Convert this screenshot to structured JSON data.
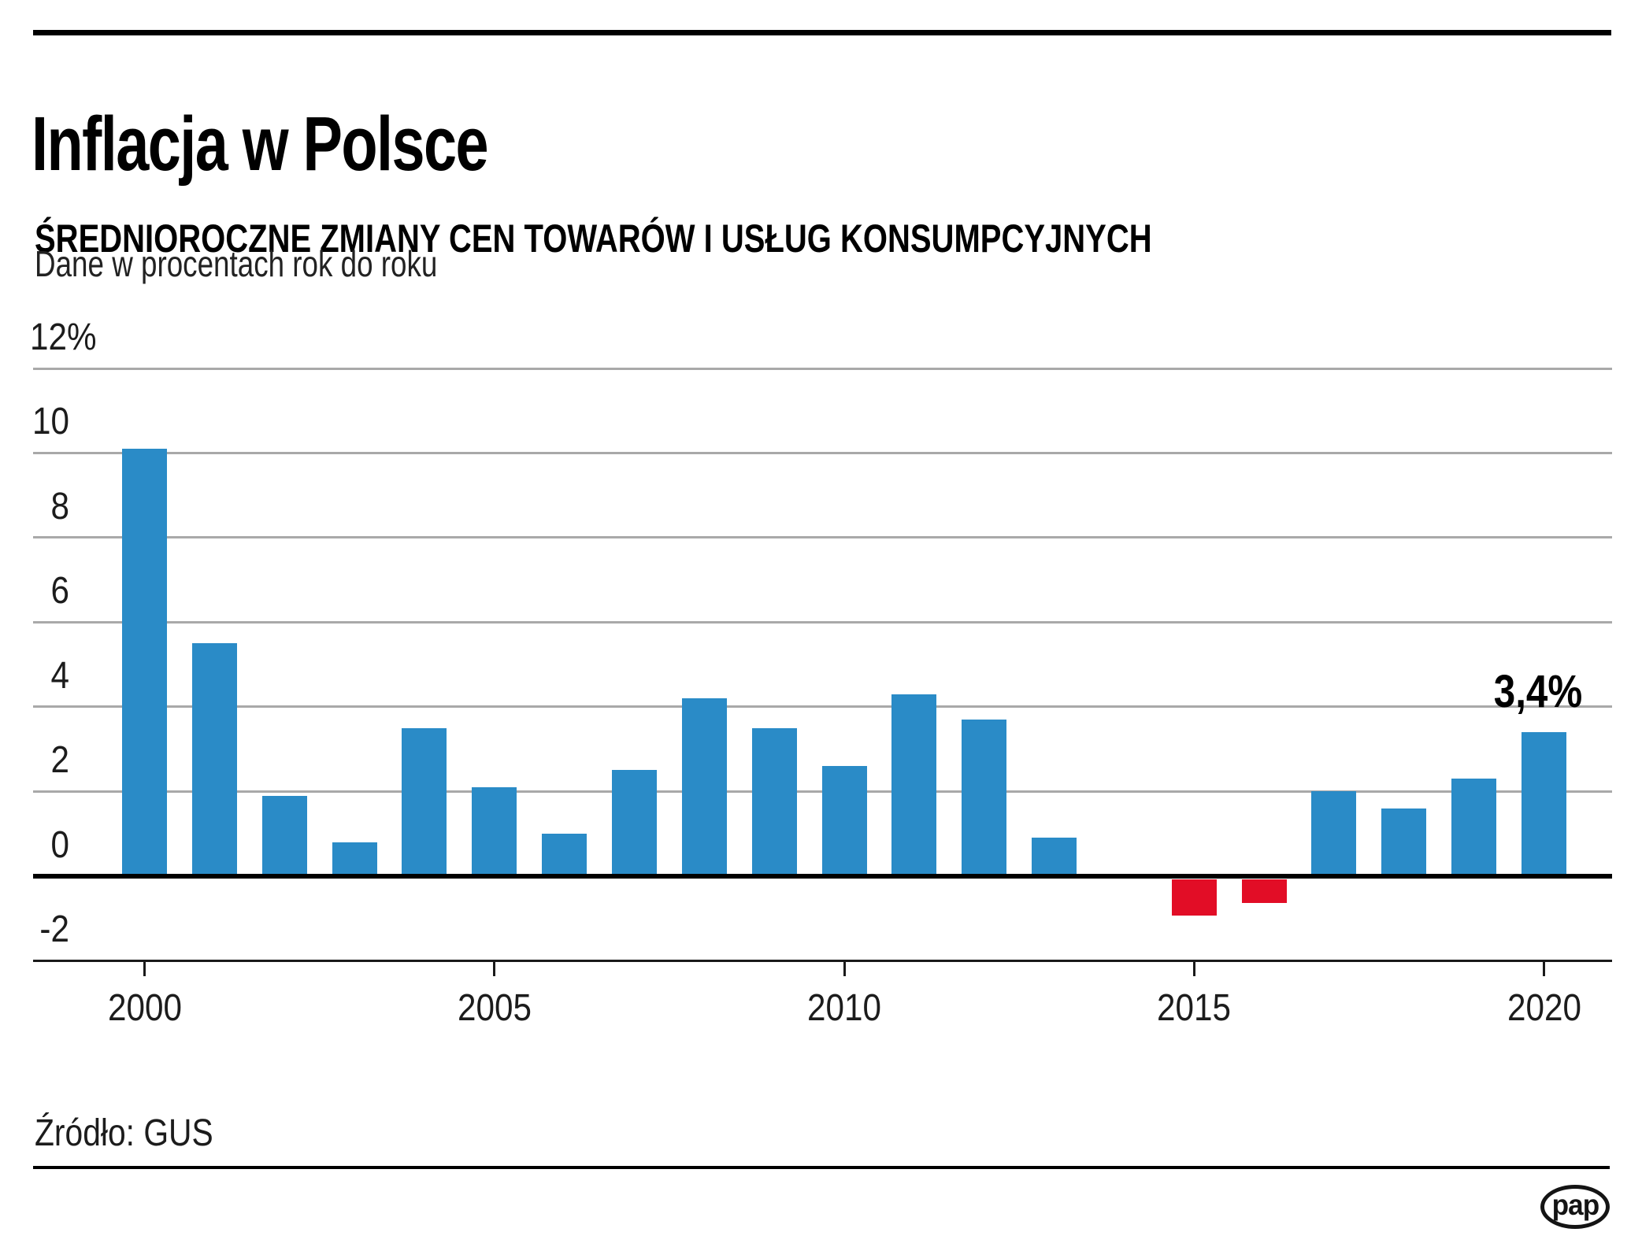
{
  "header": {
    "title": "Inflacja w Polsce",
    "subtitle": "ŚREDNIOROCZNE ZMIANY CEN TOWARÓW I USŁUG KONSUMPCYJNYCH",
    "note": "Dane w procentach rok do roku"
  },
  "chart_data": {
    "type": "bar",
    "title": "Inflacja w Polsce",
    "subtitle": "ŚREDNIOROCZNE ZMIANY CEN TOWARÓW I USŁUG KONSUMPCYJNYCH",
    "unit_note": "Dane w procentach rok do roku",
    "categories": [
      "2000",
      "2001",
      "2002",
      "2003",
      "2004",
      "2005",
      "2006",
      "2007",
      "2008",
      "2009",
      "2010",
      "2011",
      "2012",
      "2013",
      "2014",
      "2015",
      "2016",
      "2017",
      "2018",
      "2019",
      "2020"
    ],
    "values": [
      10.1,
      5.5,
      1.9,
      0.8,
      3.5,
      2.1,
      1.0,
      2.5,
      4.2,
      3.5,
      2.6,
      4.3,
      3.7,
      0.9,
      0.0,
      -0.9,
      -0.6,
      2.0,
      1.6,
      2.3,
      3.4
    ],
    "ylim": [
      -2,
      12
    ],
    "ytick_values": [
      12,
      10,
      8,
      6,
      4,
      2,
      0,
      -2
    ],
    "ytick_labels": [
      "12%",
      "10",
      "8",
      "6",
      "4",
      "2",
      "0",
      "-2"
    ],
    "xtick_values": [
      "2000",
      "2005",
      "2010",
      "2015",
      "2020"
    ],
    "grid": "horizontal",
    "legend": "none",
    "colors": {
      "positive": "#2a8bc7",
      "negative": "#e20d26"
    },
    "annotation": {
      "category": "2020",
      "text": "3,4%"
    }
  },
  "footer": {
    "source": "Źródło: GUS",
    "logo_text": "pap"
  }
}
